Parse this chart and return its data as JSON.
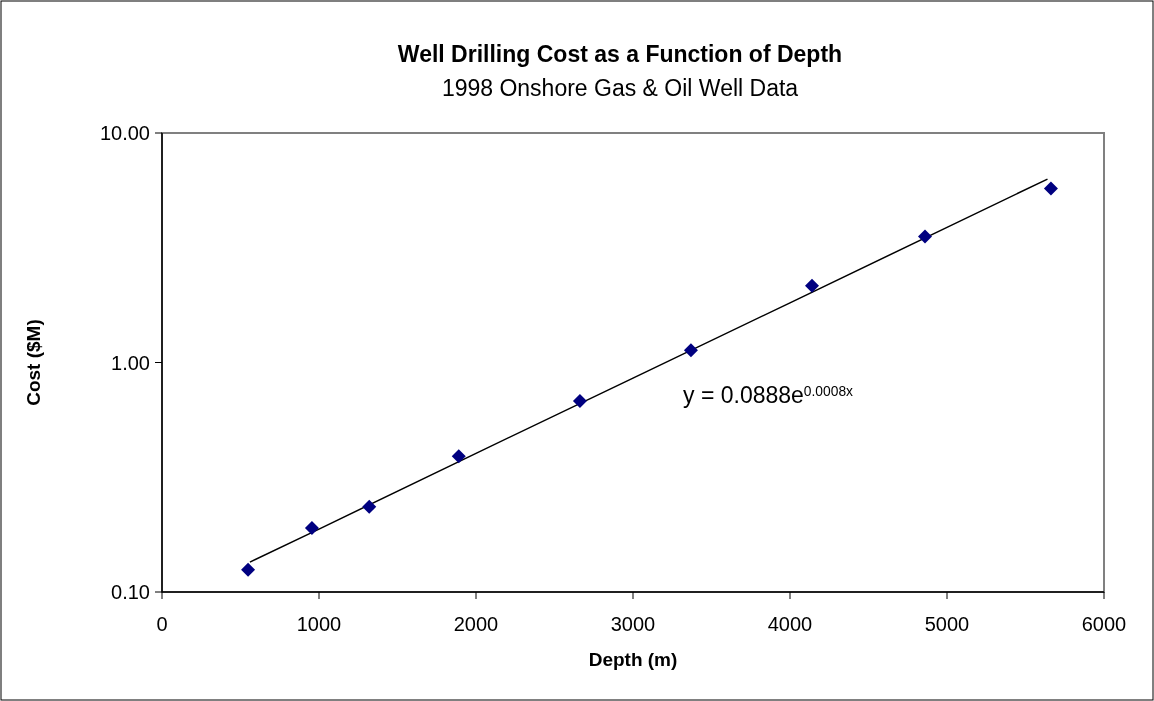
{
  "chart_data": {
    "type": "scatter",
    "title": "Well Drilling Cost as a Function of Depth",
    "subtitle": "1998 Onshore Gas & Oil Well Data",
    "xlabel": "Depth (m)",
    "ylabel": "Cost ($M)",
    "log": "y",
    "marker": "diamond",
    "grid": false,
    "xlim": [
      0,
      6000
    ],
    "xticks": [
      0,
      1000,
      2000,
      3000,
      4000,
      5000,
      6000
    ],
    "ylim": [
      0.1,
      10
    ],
    "yticks": [
      {
        "value": 0.1,
        "label": "0.10"
      },
      {
        "value": 1,
        "label": "1.00"
      },
      {
        "value": 10,
        "label": "10.00"
      }
    ],
    "annotations": [
      "y = 0.0888e$^{0.0008x}$"
    ],
    "series": [
      {
        "color": "#000080",
        "x": [
          548,
          955,
          1320,
          1890,
          2662,
          3369,
          4140,
          4860,
          5662
        ],
        "values": [
          0.125,
          0.19,
          0.235,
          0.39,
          0.68,
          1.13,
          2.16,
          3.54,
          5.73
        ]
      },
      {
        "type": "line",
        "color": "#000000",
        "marker": "none",
        "x": [
          560,
          1000,
          2000,
          3000,
          4000,
          5000,
          5640
        ],
        "values": [
          0.135,
          0.188,
          0.402,
          0.855,
          1.82,
          3.88,
          6.3
        ]
      }
    ]
  }
}
